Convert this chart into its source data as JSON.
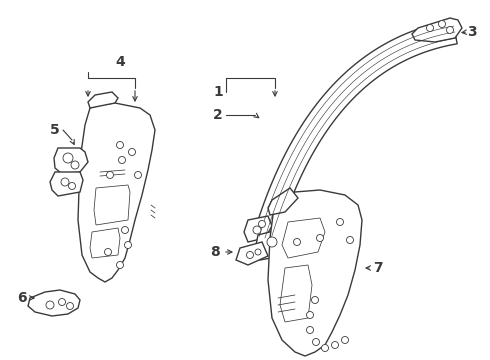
{
  "bg": "#ffffff",
  "lc": "#3a3a3a",
  "lw": 1.0,
  "lw_thin": 0.55,
  "figsize": [
    4.9,
    3.6
  ],
  "dpi": 100,
  "label_fs": 9.5
}
